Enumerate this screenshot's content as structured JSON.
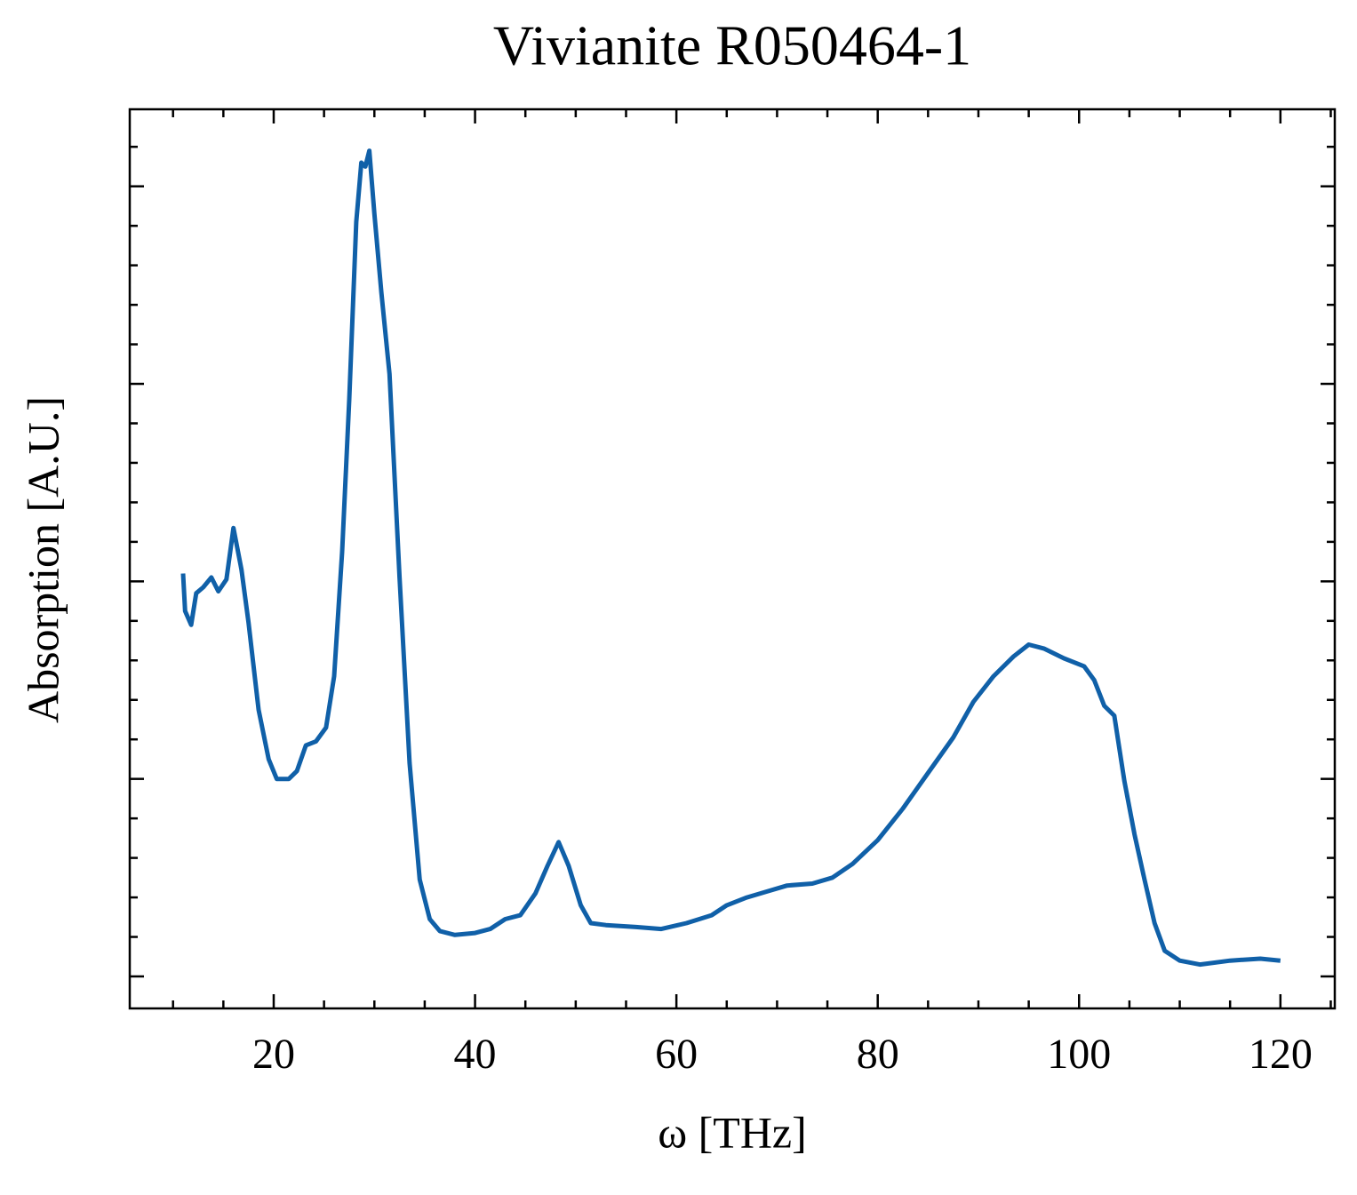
{
  "chart_data": {
    "type": "line",
    "title": "Vivianite R050464-1",
    "x_label": "ω [THz]",
    "y_label": "Absorption [A.U.]",
    "xlim": [
      5.7,
      125.4
    ],
    "ylim": [
      -0.162,
      4.39
    ],
    "xticks": [
      20,
      40,
      60,
      80,
      100,
      120
    ],
    "xminorticks": [
      10,
      15,
      25,
      30,
      35,
      45,
      50,
      55,
      65,
      70,
      75,
      85,
      90,
      95,
      105,
      110,
      115,
      125
    ],
    "yticks": [
      0,
      1,
      2,
      3,
      4
    ],
    "yminorticks": [
      0.2,
      0.4,
      0.6,
      0.8,
      1.2,
      1.4,
      1.6,
      1.8,
      2.2,
      2.4,
      2.6,
      2.8,
      3.2,
      3.4,
      3.6,
      3.8,
      4.2
    ],
    "y_tick_labels_shown": false,
    "series": [
      {
        "color": "#1060a8",
        "x": [
          11.0,
          11.2,
          11.8,
          12.3,
          13.0,
          13.8,
          14.5,
          15.3,
          16.0,
          16.8,
          17.5,
          18.5,
          19.5,
          20.3,
          21.5,
          22.3,
          23.2,
          24.2,
          25.2,
          26.0,
          26.8,
          27.5,
          28.2,
          28.7,
          29.1,
          29.5,
          30.0,
          30.7,
          31.5,
          32.5,
          33.5,
          34.5,
          35.5,
          36.5,
          38.0,
          40.0,
          41.5,
          43.0,
          44.5,
          46.0,
          47.2,
          48.3,
          49.3,
          50.5,
          51.5,
          53.0,
          56.0,
          58.5,
          61.0,
          63.5,
          65.0,
          67.0,
          69.0,
          71.0,
          73.5,
          75.5,
          77.5,
          80.0,
          82.5,
          85.0,
          87.5,
          89.5,
          91.5,
          93.5,
          95.0,
          96.5,
          98.5,
          100.5,
          101.5,
          102.5,
          103.5,
          104.5,
          105.5,
          106.5,
          107.5,
          108.5,
          110.0,
          112.0,
          115.0,
          118.0,
          120.0
        ],
        "values": [
          2.04,
          1.85,
          1.78,
          1.94,
          1.97,
          2.02,
          1.95,
          2.01,
          2.27,
          2.06,
          1.79,
          1.35,
          1.1,
          1.0,
          1.0,
          1.04,
          1.17,
          1.19,
          1.26,
          1.52,
          2.15,
          2.92,
          3.82,
          4.12,
          4.1,
          4.18,
          3.86,
          3.46,
          3.05,
          2.02,
          1.08,
          0.49,
          0.29,
          0.23,
          0.21,
          0.22,
          0.24,
          0.29,
          0.31,
          0.42,
          0.56,
          0.68,
          0.56,
          0.36,
          0.27,
          0.26,
          0.25,
          0.24,
          0.27,
          0.31,
          0.36,
          0.4,
          0.43,
          0.46,
          0.47,
          0.5,
          0.57,
          0.69,
          0.85,
          1.03,
          1.21,
          1.39,
          1.52,
          1.62,
          1.68,
          1.66,
          1.61,
          1.57,
          1.5,
          1.37,
          1.32,
          0.99,
          0.72,
          0.49,
          0.27,
          0.13,
          0.08,
          0.06,
          0.08,
          0.09,
          0.08
        ]
      }
    ]
  }
}
